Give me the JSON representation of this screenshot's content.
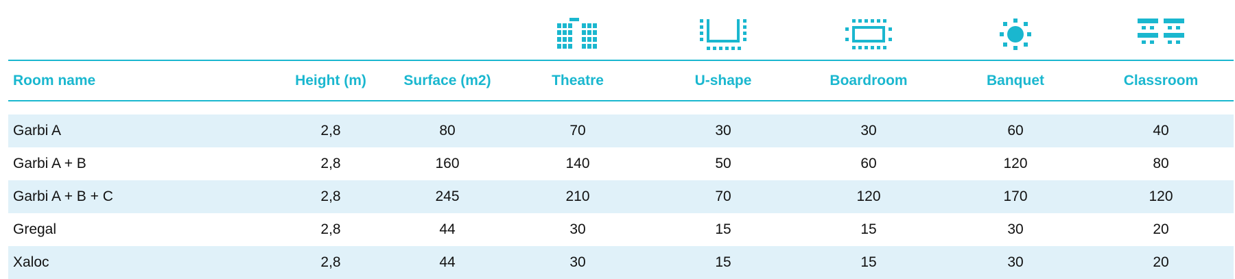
{
  "colors": {
    "accent": "#1ab7cf",
    "row_shade": "#e0f1f9",
    "text": "#111111"
  },
  "icons": [
    "theatre-icon",
    "u-shape-icon",
    "boardroom-icon",
    "banquet-icon",
    "classroom-icon"
  ],
  "headers": {
    "room_name": "Room name",
    "height": "Height (m)",
    "surface": "Surface (m2)",
    "theatre": "Theatre",
    "u_shape": "U-shape",
    "boardroom": "Boardroom",
    "banquet": "Banquet",
    "classroom": "Classroom"
  },
  "rows": [
    {
      "name": "Garbi A",
      "height": "2,8",
      "surface": "80",
      "theatre": "70",
      "u_shape": "30",
      "boardroom": "30",
      "banquet": "60",
      "classroom": "40"
    },
    {
      "name": "Garbi A + B",
      "height": "2,8",
      "surface": "160",
      "theatre": "140",
      "u_shape": "50",
      "boardroom": "60",
      "banquet": "120",
      "classroom": "80"
    },
    {
      "name": "Garbi A + B + C",
      "height": "2,8",
      "surface": "245",
      "theatre": "210",
      "u_shape": "70",
      "boardroom": "120",
      "banquet": "170",
      "classroom": "120"
    },
    {
      "name": "Gregal",
      "height": "2,8",
      "surface": "44",
      "theatre": "30",
      "u_shape": "15",
      "boardroom": "15",
      "banquet": "30",
      "classroom": "20"
    },
    {
      "name": "Xaloc",
      "height": "2,8",
      "surface": "44",
      "theatre": "30",
      "u_shape": "15",
      "boardroom": "15",
      "banquet": "30",
      "classroom": "20"
    }
  ]
}
